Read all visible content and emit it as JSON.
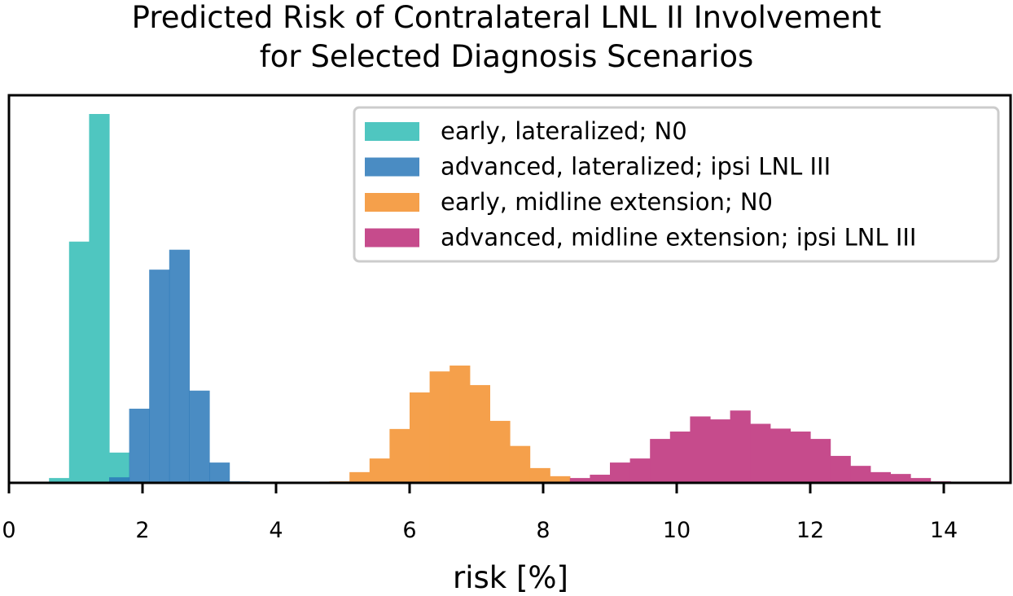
{
  "chart_data": {
    "type": "bar",
    "title_lines": [
      "Predicted Risk of Contralateral LNL II Involvement",
      "for Selected Diagnosis Scenarios"
    ],
    "xlabel": "risk [%]",
    "ylabel": "",
    "xlim": [
      0,
      15
    ],
    "x_ticks": [
      0,
      2,
      4,
      6,
      8,
      10,
      12,
      14
    ],
    "x_tick_labels": [
      "0",
      "2",
      "4",
      "6",
      "8",
      "10",
      "12",
      "14"
    ],
    "y_ticks": [],
    "ylim": [
      0,
      1
    ],
    "y_units": "relative density (no y axis printed)",
    "grid": false,
    "legend_position": "top-right",
    "bin_width": 0.3,
    "series": [
      {
        "name": "early, lateralized; N0",
        "color": "#4fc6c0",
        "opacity": 1,
        "bins": [
          {
            "start": 0.6,
            "end": 0.9,
            "value": 0.013
          },
          {
            "start": 0.9,
            "end": 1.2,
            "value": 0.654
          },
          {
            "start": 1.2,
            "end": 1.5,
            "value": 1.0
          },
          {
            "start": 1.5,
            "end": 1.8,
            "value": 0.082
          },
          {
            "start": 1.8,
            "end": 2.1,
            "value": 0.004
          }
        ]
      },
      {
        "name": "advanced, lateralized; ipsi LNL III",
        "color": "#2a78b8",
        "opacity": 0.85,
        "bins": [
          {
            "start": 1.5,
            "end": 1.8,
            "value": 0.015
          },
          {
            "start": 1.8,
            "end": 2.1,
            "value": 0.201
          },
          {
            "start": 2.1,
            "end": 2.4,
            "value": 0.578
          },
          {
            "start": 2.4,
            "end": 2.7,
            "value": 0.632
          },
          {
            "start": 2.7,
            "end": 3.0,
            "value": 0.25
          },
          {
            "start": 3.0,
            "end": 3.3,
            "value": 0.055
          },
          {
            "start": 3.3,
            "end": 3.6,
            "value": 0.004
          }
        ]
      },
      {
        "name": "early, midline extension; N0",
        "color": "#f5a04b",
        "opacity": 1,
        "bins": [
          {
            "start": 4.8,
            "end": 5.1,
            "value": 0.004
          },
          {
            "start": 5.1,
            "end": 5.4,
            "value": 0.029
          },
          {
            "start": 5.4,
            "end": 5.7,
            "value": 0.066
          },
          {
            "start": 5.7,
            "end": 6.0,
            "value": 0.146
          },
          {
            "start": 6.0,
            "end": 6.3,
            "value": 0.245
          },
          {
            "start": 6.3,
            "end": 6.6,
            "value": 0.302
          },
          {
            "start": 6.6,
            "end": 6.9,
            "value": 0.318
          },
          {
            "start": 6.9,
            "end": 7.2,
            "value": 0.265
          },
          {
            "start": 7.2,
            "end": 7.5,
            "value": 0.168
          },
          {
            "start": 7.5,
            "end": 7.8,
            "value": 0.1
          },
          {
            "start": 7.8,
            "end": 8.1,
            "value": 0.04
          },
          {
            "start": 8.1,
            "end": 8.4,
            "value": 0.018
          },
          {
            "start": 8.4,
            "end": 8.7,
            "value": 0.004
          }
        ]
      },
      {
        "name": "advanced, midline extension; ipsi LNL III",
        "color": "#c64b8c",
        "opacity": 1,
        "bins": [
          {
            "start": 8.4,
            "end": 8.7,
            "value": 0.013
          },
          {
            "start": 8.7,
            "end": 9.0,
            "value": 0.022
          },
          {
            "start": 9.0,
            "end": 9.3,
            "value": 0.055
          },
          {
            "start": 9.3,
            "end": 9.6,
            "value": 0.066
          },
          {
            "start": 9.6,
            "end": 9.9,
            "value": 0.119
          },
          {
            "start": 9.9,
            "end": 10.2,
            "value": 0.139
          },
          {
            "start": 10.2,
            "end": 10.5,
            "value": 0.18
          },
          {
            "start": 10.5,
            "end": 10.8,
            "value": 0.172
          },
          {
            "start": 10.8,
            "end": 11.1,
            "value": 0.196
          },
          {
            "start": 11.1,
            "end": 11.4,
            "value": 0.16
          },
          {
            "start": 11.4,
            "end": 11.7,
            "value": 0.147
          },
          {
            "start": 11.7,
            "end": 12.0,
            "value": 0.139
          },
          {
            "start": 12.0,
            "end": 12.3,
            "value": 0.119
          },
          {
            "start": 12.3,
            "end": 12.6,
            "value": 0.073
          },
          {
            "start": 12.6,
            "end": 12.9,
            "value": 0.046
          },
          {
            "start": 12.9,
            "end": 13.2,
            "value": 0.029
          },
          {
            "start": 13.2,
            "end": 13.5,
            "value": 0.024
          },
          {
            "start": 13.5,
            "end": 13.8,
            "value": 0.013
          },
          {
            "start": 13.8,
            "end": 14.1,
            "value": 0.004
          }
        ]
      }
    ]
  }
}
